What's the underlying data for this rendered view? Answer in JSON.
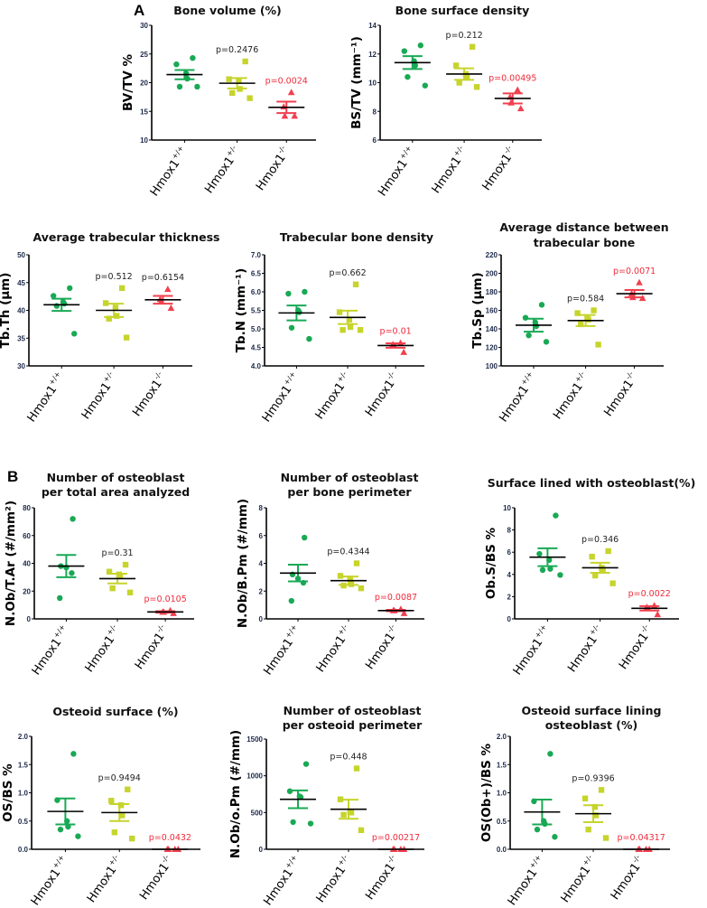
{
  "panel_labels": [
    "A",
    "B"
  ],
  "colors": {
    "wt": "#19a955",
    "het": "#c6d42c",
    "ko": "#f0404f",
    "mean": "#000000",
    "p_ns": "#222222",
    "p_sig": "#ee2b3b"
  },
  "groups": [
    {
      "base": "Hmox1",
      "sup": "+/+"
    },
    {
      "base": "Hmox1",
      "sup": "+/-"
    },
    {
      "base": "Hmox1",
      "sup": "-/-"
    }
  ],
  "chart_data": [
    {
      "type": "scatter",
      "panel": "A",
      "title": [
        "Bone volume (%)"
      ],
      "ylabel": "BV/TV %",
      "ylim": [
        10,
        30
      ],
      "yticks": [
        "10",
        "15",
        "20",
        "25",
        "30"
      ],
      "series": [
        {
          "name": "Hmox1+/+",
          "mean": 21.4,
          "sem": 0.8,
          "values": [
            24.3,
            23.2,
            21.6,
            20.7,
            19.3,
            19.3
          ]
        },
        {
          "name": "Hmox1+/-",
          "mean": 19.9,
          "sem": 0.9,
          "values": [
            23.7,
            20.6,
            20.3,
            18.9,
            18.2,
            17.3
          ],
          "p": "p=0.2476",
          "sig": false
        },
        {
          "name": "Hmox1-/-",
          "mean": 15.7,
          "sem": 1.0,
          "values": [
            18.3,
            15.8,
            14.2,
            14.2
          ],
          "p": "p=0.0024",
          "sig": true
        }
      ]
    },
    {
      "type": "scatter",
      "title": [
        "Bone surface density"
      ],
      "ylabel": "BS/TV (mm⁻¹)",
      "ylim": [
        6,
        14
      ],
      "yticks": [
        "6",
        "8",
        "10",
        "12",
        "14"
      ],
      "series": [
        {
          "name": "Hmox1+/+",
          "mean": 11.4,
          "sem": 0.45,
          "values": [
            12.6,
            12.2,
            11.5,
            11.2,
            10.4,
            9.8
          ]
        },
        {
          "name": "Hmox1+/-",
          "mean": 10.6,
          "sem": 0.4,
          "values": [
            12.5,
            11.2,
            10.6,
            10.4,
            10.0,
            9.7
          ],
          "p": "p=0.212",
          "sig": false
        },
        {
          "name": "Hmox1-/-",
          "mean": 8.9,
          "sem": 0.35,
          "values": [
            9.5,
            9.0,
            8.6,
            8.2
          ],
          "p": "p=0.00495",
          "sig": true
        }
      ]
    },
    {
      "type": "scatter",
      "title": [
        "Average trabecular thickness"
      ],
      "ylabel": "Tb.Th (µm)",
      "ylim": [
        30,
        50
      ],
      "yticks": [
        "30",
        "35",
        "40",
        "45",
        "50"
      ],
      "series": [
        {
          "name": "Hmox1+/+",
          "mean": 41.0,
          "sem": 1.1,
          "values": [
            44.0,
            42.6,
            41.5,
            41.2,
            40.8,
            35.8
          ]
        },
        {
          "name": "Hmox1+/-",
          "mean": 40.0,
          "sem": 1.2,
          "values": [
            44.0,
            41.3,
            40.5,
            39.0,
            38.5,
            35.1
          ],
          "p": "p=0.512",
          "sig": false
        },
        {
          "name": "Hmox1-/-",
          "mean": 41.9,
          "sem": 0.7,
          "values": [
            43.8,
            42.0,
            41.6,
            40.4
          ],
          "p": "p=0.6154",
          "sig": false
        }
      ]
    },
    {
      "type": "scatter",
      "title": [
        "Trabecular bone density"
      ],
      "ylabel": "Tb.N (mm⁻¹)",
      "ylim": [
        4.0,
        7.0
      ],
      "yticks": [
        "4.0",
        "4.5",
        "5.0",
        "5.5",
        "6.0",
        "6.5",
        "7.0"
      ],
      "series": [
        {
          "name": "Hmox1+/+",
          "mean": 5.43,
          "sem": 0.2,
          "values": [
            6.0,
            5.95,
            5.5,
            5.45,
            5.03,
            4.73
          ]
        },
        {
          "name": "Hmox1+/-",
          "mean": 5.31,
          "sem": 0.18,
          "values": [
            6.2,
            5.45,
            5.25,
            5.05,
            4.97,
            4.97
          ],
          "p": "p=0.662",
          "sig": false
        },
        {
          "name": "Hmox1-/-",
          "mean": 4.55,
          "sem": 0.06,
          "values": [
            4.62,
            4.58,
            4.55,
            4.37
          ],
          "p": "p=0.01",
          "sig": true
        }
      ]
    },
    {
      "type": "scatter",
      "title": [
        "Average distance between",
        "trabecular bone"
      ],
      "ylabel": "Tb.Sp (µm)",
      "ylim": [
        100,
        220
      ],
      "yticks": [
        "100",
        "120",
        "140",
        "160",
        "180",
        "200",
        "220"
      ],
      "series": [
        {
          "name": "Hmox1+/+",
          "mean": 144,
          "sem": 7,
          "values": [
            166,
            152,
            147,
            143,
            133,
            126
          ]
        },
        {
          "name": "Hmox1+/-",
          "mean": 149,
          "sem": 6,
          "values": [
            160,
            157,
            152,
            150,
            145,
            123
          ],
          "p": "p=0.584",
          "sig": false
        },
        {
          "name": "Hmox1-/-",
          "mean": 178,
          "sem": 4,
          "values": [
            190,
            178,
            174,
            173
          ],
          "p": "p=0.0071",
          "sig": true
        }
      ]
    },
    {
      "type": "scatter",
      "panel": "B",
      "title": [
        "Number of osteoblast",
        "per total area analyzed"
      ],
      "ylabel": "N.Ob/T.Ar (#/mm²)",
      "ylim": [
        0,
        80
      ],
      "yticks": [
        "0",
        "20",
        "40",
        "60",
        "80"
      ],
      "series": [
        {
          "name": "Hmox1+/+",
          "mean": 38,
          "sem": 8,
          "values": [
            72,
            38,
            37,
            33,
            15
          ]
        },
        {
          "name": "Hmox1+/-",
          "mean": 29,
          "sem": 3.5,
          "values": [
            39,
            34,
            32,
            31,
            22,
            19
          ],
          "p": "p=0.31",
          "sig": false
        },
        {
          "name": "Hmox1-/-",
          "mean": 5,
          "sem": 0.5,
          "values": [
            6,
            5,
            5,
            4
          ],
          "p": "p=0.0105",
          "sig": true
        }
      ]
    },
    {
      "type": "scatter",
      "title": [
        "Number of osteoblast",
        "per bone perimeter"
      ],
      "ylabel": "N.Ob/B.Pm (#/mm)",
      "ylim": [
        0,
        8
      ],
      "yticks": [
        "0",
        "2",
        "4",
        "6",
        "8"
      ],
      "series": [
        {
          "name": "Hmox1+/+",
          "mean": 3.3,
          "sem": 0.6,
          "values": [
            5.85,
            3.2,
            2.9,
            2.6,
            1.3
          ]
        },
        {
          "name": "Hmox1+/-",
          "mean": 2.75,
          "sem": 0.3,
          "values": [
            4.0,
            3.1,
            2.9,
            2.5,
            2.4,
            2.2
          ],
          "p": "p=0.4344",
          "sig": false
        },
        {
          "name": "Hmox1-/-",
          "mean": 0.6,
          "sem": 0.05,
          "values": [
            0.7,
            0.6,
            0.6,
            0.4
          ],
          "p": "p=0.0087",
          "sig": true
        }
      ]
    },
    {
      "type": "scatter",
      "title": [
        "Surface lined with osteoblast(%)"
      ],
      "ylabel": "Ob.S/BS %",
      "ylim": [
        0,
        10
      ],
      "yticks": [
        "0",
        "2",
        "4",
        "6",
        "8",
        "10"
      ],
      "series": [
        {
          "name": "Hmox1+/+",
          "mean": 5.55,
          "sem": 0.8,
          "values": [
            9.3,
            5.85,
            5.3,
            4.5,
            4.4,
            3.95
          ]
        },
        {
          "name": "Hmox1+/-",
          "mean": 4.6,
          "sem": 0.45,
          "values": [
            6.1,
            5.6,
            4.6,
            4.4,
            3.9,
            3.2
          ],
          "p": "p=0.346",
          "sig": false
        },
        {
          "name": "Hmox1-/-",
          "mean": 0.95,
          "sem": 0.2,
          "values": [
            1.2,
            1.05,
            0.95,
            0.4
          ],
          "p": "p=0.0022",
          "sig": true
        }
      ]
    },
    {
      "type": "scatter",
      "title": [
        "Osteoid surface (%)"
      ],
      "ylabel": "OS/BS %",
      "ylim": [
        0,
        2.0
      ],
      "yticks": [
        "0.0",
        "0.5",
        "1.0",
        "1.5",
        "2.0"
      ],
      "series": [
        {
          "name": "Hmox1+/+",
          "mean": 0.67,
          "sem": 0.23,
          "values": [
            1.69,
            0.87,
            0.5,
            0.4,
            0.35,
            0.23
          ]
        },
        {
          "name": "Hmox1+/-",
          "mean": 0.65,
          "sem": 0.15,
          "values": [
            1.06,
            0.86,
            0.78,
            0.6,
            0.3,
            0.19
          ],
          "p": "p=0.9494",
          "sig": false
        },
        {
          "name": "Hmox1-/-",
          "mean": 0,
          "sem": 0,
          "values": [
            0,
            0,
            0,
            0
          ],
          "p": "p=0.0432",
          "sig": true
        }
      ]
    },
    {
      "type": "scatter",
      "title": [
        "Number of osteoblast",
        "per osteoid perimeter"
      ],
      "ylabel": "N.Ob/o.Pm (#/mm)",
      "ylim": [
        0,
        1500
      ],
      "yticks": [
        "0",
        "500",
        "1000",
        "1500"
      ],
      "series": [
        {
          "name": "Hmox1+/+",
          "mean": 680,
          "sem": 120,
          "values": [
            1160,
            790,
            720,
            710,
            370,
            350
          ]
        },
        {
          "name": "Hmox1+/-",
          "mean": 545,
          "sem": 130,
          "values": [
            1100,
            680,
            510,
            500,
            470,
            260
          ],
          "p": "p=0.448",
          "sig": false
        },
        {
          "name": "Hmox1-/-",
          "mean": 0,
          "sem": 0,
          "values": [
            0,
            0,
            0,
            0
          ],
          "p": "p=0.00217",
          "sig": true
        }
      ]
    },
    {
      "type": "scatter",
      "title": [
        "Osteoid surface lining",
        "osteoblast (%)"
      ],
      "ylabel": "OS(Ob+)/BS %",
      "ylim": [
        0,
        2.0
      ],
      "yticks": [
        "0.0",
        "0.5",
        "1.0",
        "1.5",
        "2.0"
      ],
      "series": [
        {
          "name": "Hmox1+/+",
          "mean": 0.66,
          "sem": 0.22,
          "values": [
            1.69,
            0.85,
            0.5,
            0.45,
            0.35,
            0.22
          ]
        },
        {
          "name": "Hmox1+/-",
          "mean": 0.63,
          "sem": 0.15,
          "values": [
            1.05,
            0.9,
            0.75,
            0.6,
            0.35,
            0.2
          ],
          "p": "p=0.9396",
          "sig": false
        },
        {
          "name": "Hmox1-/-",
          "mean": 0,
          "sem": 0,
          "values": [
            0,
            0,
            0,
            0
          ],
          "p": "p=0.04317",
          "sig": true
        }
      ]
    }
  ]
}
